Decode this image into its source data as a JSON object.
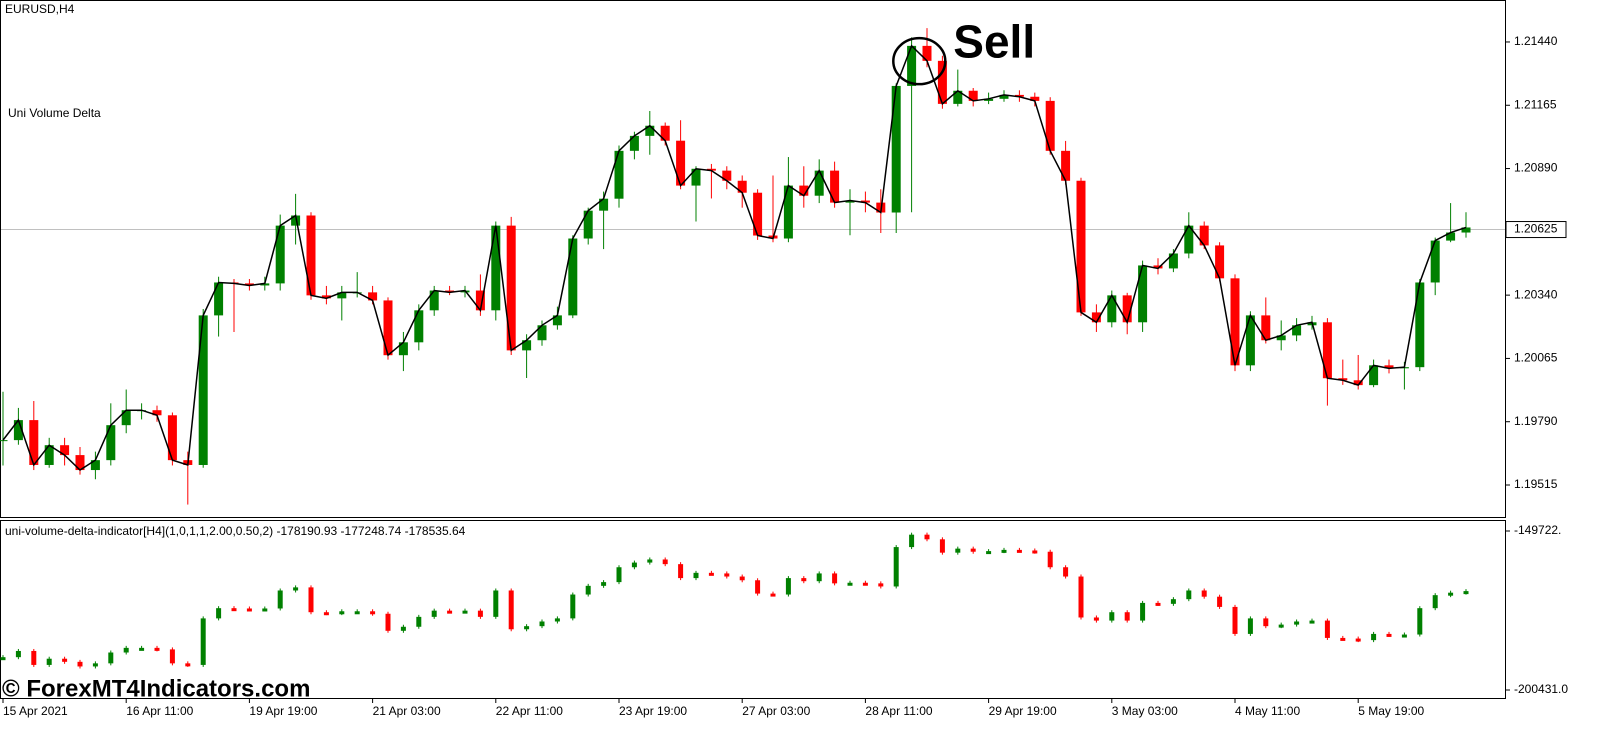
{
  "watermark": "© ForexMT4Indicators.com",
  "chart_data": [
    {
      "type": "candlestick",
      "title": "EURUSD,H4",
      "subtitle": "Uni Volume Delta",
      "annotation": "Sell",
      "up_color": "#008000",
      "down_color": "#ff0000",
      "line_color": "#000000",
      "ylim": [
        1.19376,
        1.21618
      ],
      "yticks": [
        {
          "value": 1.2144,
          "label": "1.21440"
        },
        1.21165,
        {
          "value": 1.2089,
          "label": "1.20890"
        },
        {
          "value": 1.2034,
          "label": "1.20340"
        },
        1.20065,
        {
          "value": 1.1979,
          "label": "1.19790"
        },
        1.19515
      ],
      "current_price": 1.20625,
      "categories": [
        "15 Apr 2021",
        null,
        null,
        null,
        null,
        null,
        null,
        null,
        "16 Apr 11:00",
        null,
        null,
        null,
        null,
        null,
        null,
        null,
        "19 Apr 19:00",
        null,
        null,
        null,
        null,
        null,
        null,
        null,
        "21 Apr 03:00",
        null,
        null,
        null,
        null,
        null,
        null,
        null,
        "22 Apr 11:00",
        null,
        null,
        null,
        null,
        null,
        null,
        null,
        "23 Apr 19:00",
        null,
        null,
        null,
        null,
        null,
        null,
        null,
        "27 Apr 03:00",
        null,
        null,
        null,
        null,
        null,
        null,
        null,
        "28 Apr 11:00",
        null,
        null,
        null,
        null,
        null,
        null,
        null,
        "29 Apr 19:00",
        null,
        null,
        null,
        null,
        null,
        null,
        null,
        "3 May 03:00",
        null,
        null,
        null,
        null,
        null,
        null,
        null,
        "4 May 11:00",
        null,
        null,
        null,
        null,
        null,
        null,
        null,
        "5 May 19:00",
        null,
        null,
        null,
        null,
        null,
        null,
        null
      ],
      "close": [
        1.1971,
        1.19797,
        1.19602,
        1.19688,
        1.19645,
        1.1958,
        1.19623,
        1.19775,
        1.1984,
        1.1984,
        1.19818,
        1.19623,
        1.19602,
        1.20252,
        1.20395,
        1.20391,
        1.20382,
        1.20391,
        1.20642,
        1.20686,
        1.20339,
        1.20326,
        1.20352,
        1.20352,
        1.20317,
        1.20079,
        1.20135,
        1.20274,
        1.2036,
        1.20352,
        1.2036,
        1.20274,
        1.20642,
        1.201,
        1.20144,
        1.20209,
        1.20252,
        1.20586,
        1.20707,
        1.20759,
        1.20967,
        1.21032,
        1.21076,
        1.21011,
        1.20816,
        1.20889,
        1.20881,
        1.20837,
        1.20785,
        1.20599,
        1.20586,
        1.20816,
        1.20772,
        1.20881,
        1.20742,
        1.20751,
        1.20742,
        1.20699,
        1.21249,
        1.21423,
        1.21358,
        1.21171,
        1.21228,
        1.21184,
        1.21193,
        1.2121,
        1.21202,
        1.21184,
        1.20967,
        1.20837,
        1.20265,
        1.20222,
        1.20339,
        1.20222,
        1.20469,
        1.20456,
        1.20521,
        1.20642,
        1.20556,
        1.20413,
        1.20035,
        1.20252,
        1.20144,
        1.20165,
        1.20209,
        1.20222,
        1.19979,
        1.1997,
        1.19949,
        1.20035,
        1.20022,
        1.20027,
        1.20395,
        1.20577,
        1.20612,
        1.20634
      ],
      "high": [
        1.1992,
        1.1985,
        1.1988,
        1.1972,
        1.1972,
        1.1968,
        1.1966,
        1.1987,
        1.1993,
        1.1987,
        1.1986,
        1.1983,
        1.1966,
        1.2028,
        1.2042,
        1.2041,
        1.2041,
        1.2042,
        1.2069,
        1.2078,
        1.207,
        1.2038,
        1.2038,
        1.2044,
        1.2038,
        1.2033,
        1.2018,
        1.203,
        1.2038,
        1.2038,
        1.2038,
        1.2043,
        1.2066,
        1.2068,
        1.2017,
        1.2023,
        1.2029,
        1.206,
        1.2072,
        1.2079,
        1.2099,
        1.2105,
        1.2114,
        1.2109,
        1.211,
        1.209,
        1.2091,
        1.209,
        1.2086,
        1.208,
        1.2086,
        1.2094,
        1.209,
        1.2093,
        1.2092,
        1.208,
        1.2079,
        1.208,
        1.2126,
        1.2146,
        1.215,
        1.2138,
        1.2132,
        1.2124,
        1.2122,
        1.2123,
        1.2123,
        1.2122,
        1.212,
        1.2101,
        1.2085,
        1.203,
        1.2036,
        1.2035,
        1.2049,
        1.205,
        1.2054,
        1.207,
        1.2066,
        1.2057,
        1.2043,
        1.2027,
        1.2033,
        1.2023,
        1.2024,
        1.2025,
        1.2024,
        1.2006,
        1.2008,
        1.2006,
        1.2006,
        1.2005,
        1.2041,
        1.2059,
        1.2074,
        1.207
      ],
      "low": [
        1.196,
        1.1969,
        1.1958,
        1.1959,
        1.196,
        1.1956,
        1.1954,
        1.196,
        1.1974,
        1.198,
        1.1979,
        1.196,
        1.1943,
        1.1959,
        1.2016,
        1.2018,
        1.2036,
        1.2036,
        1.2036,
        1.2056,
        1.2032,
        1.203,
        1.2023,
        1.2033,
        1.203,
        1.2006,
        1.2001,
        1.201,
        1.2025,
        1.2034,
        1.2033,
        1.2025,
        1.2023,
        1.2008,
        1.1998,
        1.2012,
        1.2019,
        1.2024,
        1.2056,
        1.2054,
        1.2072,
        1.2093,
        1.2095,
        1.2099,
        1.208,
        1.2066,
        1.2076,
        1.208,
        1.2072,
        1.2058,
        1.2057,
        1.2057,
        1.2072,
        1.2074,
        1.2072,
        1.206,
        1.207,
        1.2061,
        1.2061,
        1.207,
        1.2133,
        1.2115,
        1.2116,
        1.2116,
        1.2117,
        1.2118,
        1.2118,
        1.2116,
        1.2095,
        1.2082,
        1.2025,
        1.2018,
        1.202,
        1.2017,
        1.2018,
        1.2043,
        1.2044,
        1.205,
        1.2054,
        1.204,
        1.2001,
        1.2001,
        1.2013,
        1.201,
        1.2014,
        1.2019,
        1.1986,
        1.1995,
        1.1993,
        1.1994,
        1.2,
        1.1993,
        1.2001,
        1.2034,
        1.2057,
        1.2059
      ]
    },
    {
      "type": "delta",
      "title": "uni-volume-delta-indicator[H4](1,0,1,1,2.00,0.50,2) -178190.93 -177248.74 -178535.64",
      "up_color": "#008000",
      "down_color": "#ff0000",
      "ylim": [
        -202980,
        -146530
      ],
      "yticks": [
        {
          "value": -149722,
          "label": "-149722."
        },
        {
          "value": -200431,
          "label": "-200431.0"
        }
      ],
      "values": [
        -189960,
        -187980,
        -192430,
        -190450,
        -191440,
        -192920,
        -191930,
        -188470,
        -186990,
        -186990,
        -187480,
        -191930,
        -192430,
        -177590,
        -174330,
        -174430,
        -174630,
        -174430,
        -168690,
        -167700,
        -175620,
        -175910,
        -175320,
        -175320,
        -176110,
        -181550,
        -180260,
        -177100,
        -175120,
        -175320,
        -175120,
        -177100,
        -168690,
        -181060,
        -180070,
        -178580,
        -177590,
        -169980,
        -167210,
        -166020,
        -161280,
        -159790,
        -158800,
        -160290,
        -164740,
        -163060,
        -163250,
        -164240,
        -165430,
        -169680,
        -169980,
        -164740,
        -165730,
        -163250,
        -166420,
        -166220,
        -166420,
        -167410,
        -154850,
        -150890,
        -152370,
        -156630,
        -155340,
        -156330,
        -156130,
        -155740,
        -155930,
        -156330,
        -161280,
        -164240,
        -177300,
        -178290,
        -175620,
        -178290,
        -172650,
        -172950,
        -171460,
        -168690,
        -170670,
        -173930,
        -182540,
        -177590,
        -180070,
        -179570,
        -178580,
        -178290,
        -183820,
        -184020,
        -184520,
        -182540,
        -182840,
        -182740,
        -174330,
        -170180,
        -169390,
        -168890
      ]
    }
  ]
}
